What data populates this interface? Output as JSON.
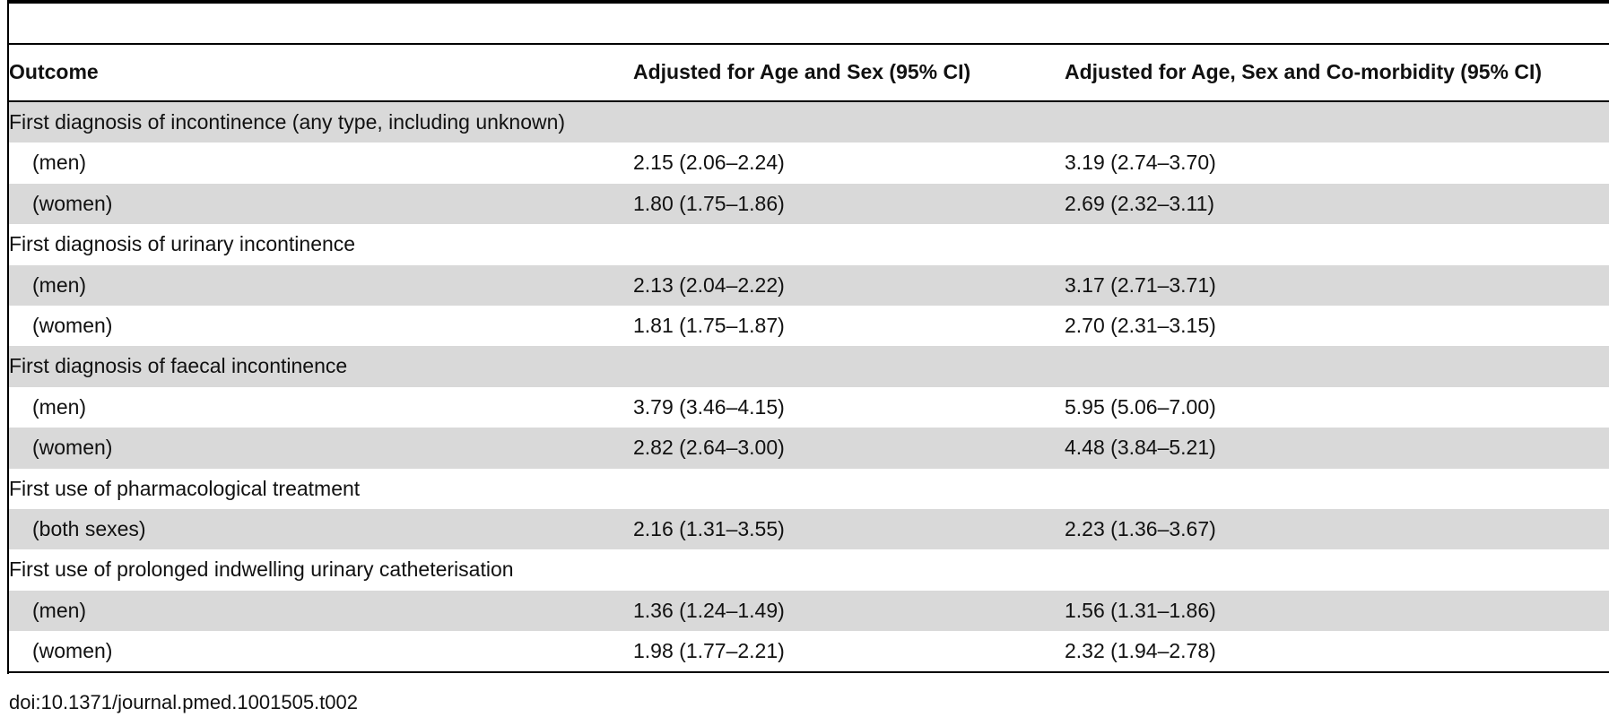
{
  "table": {
    "headers": [
      "Outcome",
      "Adjusted for Age and Sex (95% CI)",
      "Adjusted for Age, Sex and Co-morbidity (95% CI)"
    ],
    "rows": [
      {
        "outcome": "First diagnosis of incontinence (any type, including unknown)",
        "age_sex": "",
        "age_sex_comorbidity": ""
      },
      {
        "outcome": "(men)",
        "age_sex": "2.15 (2.06–2.24)",
        "age_sex_comorbidity": "3.19 (2.74–3.70)"
      },
      {
        "outcome": "(women)",
        "age_sex": "1.80 (1.75–1.86)",
        "age_sex_comorbidity": "2.69 (2.32–3.11)"
      },
      {
        "outcome": "First diagnosis of urinary incontinence",
        "age_sex": "",
        "age_sex_comorbidity": ""
      },
      {
        "outcome": "(men)",
        "age_sex": "2.13 (2.04–2.22)",
        "age_sex_comorbidity": "3.17 (2.71–3.71)"
      },
      {
        "outcome": "(women)",
        "age_sex": "1.81 (1.75–1.87)",
        "age_sex_comorbidity": "2.70 (2.31–3.15)"
      },
      {
        "outcome": "First diagnosis of faecal incontinence",
        "age_sex": "",
        "age_sex_comorbidity": ""
      },
      {
        "outcome": "(men)",
        "age_sex": "3.79 (3.46–4.15)",
        "age_sex_comorbidity": "5.95 (5.06–7.00)"
      },
      {
        "outcome": "(women)",
        "age_sex": "2.82 (2.64–3.00)",
        "age_sex_comorbidity": "4.48 (3.84–5.21)"
      },
      {
        "outcome": "First use of pharmacological treatment",
        "age_sex": "",
        "age_sex_comorbidity": ""
      },
      {
        "outcome": "(both sexes)",
        "age_sex": "2.16 (1.31–3.55)",
        "age_sex_comorbidity": "2.23 (1.36–3.67)"
      },
      {
        "outcome": "First use of prolonged indwelling urinary catheterisation",
        "age_sex": "",
        "age_sex_comorbidity": ""
      },
      {
        "outcome": "(men)",
        "age_sex": "1.36 (1.24–1.49)",
        "age_sex_comorbidity": "1.56 (1.31–1.86)"
      },
      {
        "outcome": "(women)",
        "age_sex": "1.98 (1.77–2.21)",
        "age_sex_comorbidity": "2.32 (1.94–2.78)"
      }
    ],
    "row_fill_color": "#d9d9d9"
  },
  "footer": {
    "doi": "doi:10.1371/journal.pmed.1001505.t002"
  }
}
